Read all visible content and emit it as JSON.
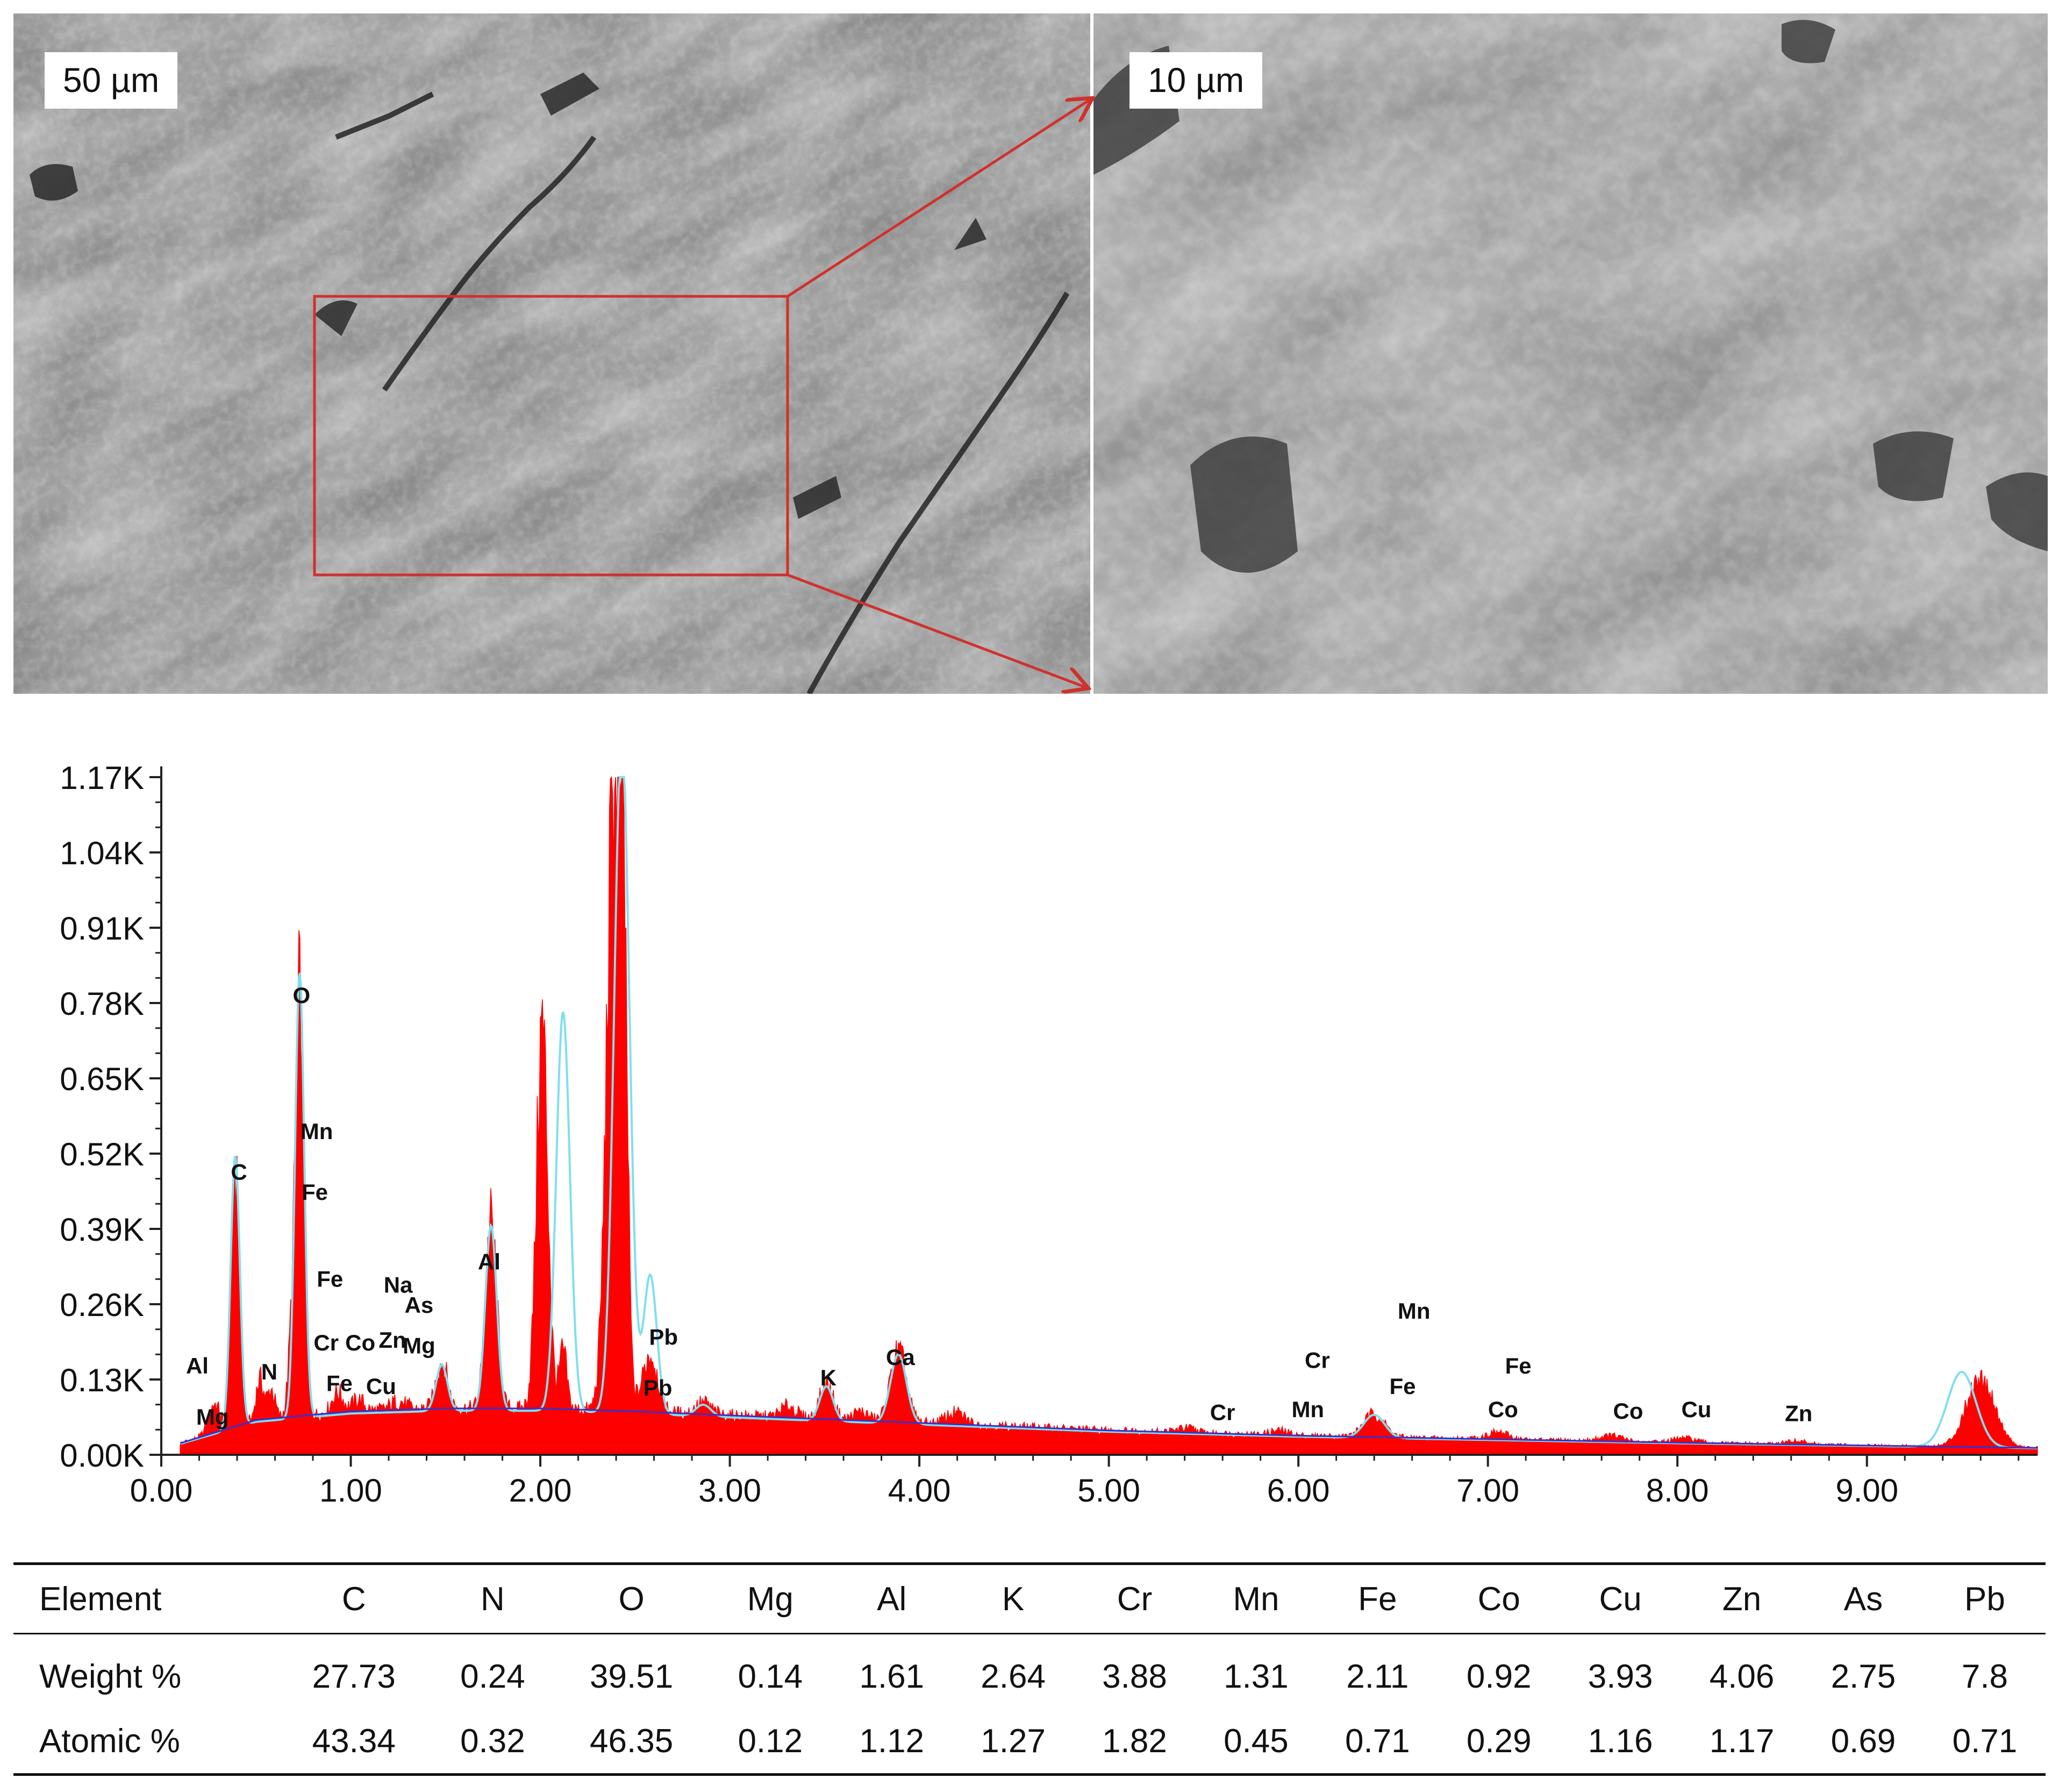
{
  "micrographs": {
    "left_scale": "50 µm",
    "right_scale": "10 µm",
    "zoom_color": "#d0312d"
  },
  "chart_data": {
    "type": "line",
    "xlabel": "",
    "ylabel": "",
    "xlim": [
      0.0,
      9.9
    ],
    "ylim": [
      0.0,
      1.17
    ],
    "x_ticks": [
      "0.00",
      "1.00",
      "2.00",
      "3.00",
      "4.00",
      "5.00",
      "6.00",
      "7.00",
      "8.00",
      "9.00"
    ],
    "y_ticks": [
      "0.00K",
      "0.13K",
      "0.26K",
      "0.39K",
      "0.52K",
      "0.65K",
      "0.78K",
      "0.91K",
      "1.04K",
      "1.17K"
    ],
    "colors": {
      "spectrum": "#ff0000",
      "fit": "#7fdfee",
      "background": "#3333cc"
    },
    "background": [
      [
        0.1,
        0.02
      ],
      [
        0.5,
        0.06
      ],
      [
        1.0,
        0.075
      ],
      [
        1.5,
        0.08
      ],
      [
        2.0,
        0.08
      ],
      [
        2.5,
        0.075
      ],
      [
        3.0,
        0.068
      ],
      [
        4.0,
        0.055
      ],
      [
        5.0,
        0.042
      ],
      [
        6.0,
        0.033
      ],
      [
        7.0,
        0.027
      ],
      [
        8.0,
        0.021
      ],
      [
        9.0,
        0.016
      ],
      [
        9.9,
        0.012
      ]
    ],
    "peaks": [
      {
        "x": 0.28,
        "y": 0.05,
        "w": 0.03
      },
      {
        "x": 0.39,
        "y": 0.44,
        "w": 0.022
      },
      {
        "x": 0.52,
        "y": 0.07,
        "w": 0.02
      },
      {
        "x": 0.58,
        "y": 0.05,
        "w": 0.02
      },
      {
        "x": 0.69,
        "y": 0.12,
        "w": 0.02
      },
      {
        "x": 0.73,
        "y": 0.7,
        "w": 0.022
      },
      {
        "x": 0.93,
        "y": 0.035,
        "w": 0.03
      },
      {
        "x": 1.04,
        "y": 0.02,
        "w": 0.03
      },
      {
        "x": 1.25,
        "y": 0.015,
        "w": 0.04
      },
      {
        "x": 1.48,
        "y": 0.08,
        "w": 0.03
      },
      {
        "x": 1.74,
        "y": 0.32,
        "w": 0.03
      },
      {
        "x": 2.01,
        "y": 0.66,
        "w": 0.03
      },
      {
        "x": 2.12,
        "y": 0.1,
        "w": 0.02
      },
      {
        "x": 2.39,
        "y": 1.1,
        "w": 0.038
      },
      {
        "x": 2.44,
        "y": 0.55,
        "w": 0.02
      },
      {
        "x": 2.58,
        "y": 0.1,
        "w": 0.04
      },
      {
        "x": 2.86,
        "y": 0.02,
        "w": 0.04
      },
      {
        "x": 3.31,
        "y": 0.02,
        "w": 0.04
      },
      {
        "x": 3.51,
        "y": 0.06,
        "w": 0.035
      },
      {
        "x": 3.69,
        "y": 0.015,
        "w": 0.04
      },
      {
        "x": 3.89,
        "y": 0.12,
        "w": 0.042
      },
      {
        "x": 4.19,
        "y": 0.02,
        "w": 0.05
      },
      {
        "x": 5.41,
        "y": 0.008,
        "w": 0.05
      },
      {
        "x": 5.9,
        "y": 0.008,
        "w": 0.05
      },
      {
        "x": 6.4,
        "y": 0.04,
        "w": 0.055
      },
      {
        "x": 7.05,
        "y": 0.012,
        "w": 0.06
      },
      {
        "x": 7.65,
        "y": 0.01,
        "w": 0.06
      },
      {
        "x": 8.04,
        "y": 0.008,
        "w": 0.06
      },
      {
        "x": 8.63,
        "y": 0.006,
        "w": 0.06
      },
      {
        "x": 9.6,
        "y": 0.12,
        "w": 0.075
      }
    ],
    "fit_peaks": [
      {
        "x": 0.39,
        "y": 0.47,
        "w": 0.024
      },
      {
        "x": 0.73,
        "y": 0.77,
        "w": 0.024
      },
      {
        "x": 1.48,
        "y": 0.08,
        "w": 0.03
      },
      {
        "x": 1.74,
        "y": 0.32,
        "w": 0.03
      },
      {
        "x": 2.12,
        "y": 0.69,
        "w": 0.036
      },
      {
        "x": 2.43,
        "y": 1.17,
        "w": 0.04
      },
      {
        "x": 2.58,
        "y": 0.24,
        "w": 0.035
      },
      {
        "x": 2.86,
        "y": 0.02,
        "w": 0.04
      },
      {
        "x": 3.51,
        "y": 0.06,
        "w": 0.035
      },
      {
        "x": 3.89,
        "y": 0.12,
        "w": 0.042
      },
      {
        "x": 6.4,
        "y": 0.04,
        "w": 0.055
      },
      {
        "x": 9.5,
        "y": 0.13,
        "w": 0.075
      }
    ],
    "annotations": [
      {
        "text": "O",
        "x": 0.74,
        "y": 0.78
      },
      {
        "text": "Mn",
        "x": 0.82,
        "y": 0.545
      },
      {
        "text": "Fe",
        "x": 0.81,
        "y": 0.44
      },
      {
        "text": "C",
        "x": 0.41,
        "y": 0.475
      },
      {
        "text": "Fe",
        "x": 0.89,
        "y": 0.29
      },
      {
        "text": "Na",
        "x": 1.25,
        "y": 0.28
      },
      {
        "text": "Al",
        "x": 1.73,
        "y": 0.32
      },
      {
        "text": "As",
        "x": 1.36,
        "y": 0.245
      },
      {
        "text": "Zn",
        "x": 1.22,
        "y": 0.185
      },
      {
        "text": "Co",
        "x": 1.05,
        "y": 0.18
      },
      {
        "text": "Cr",
        "x": 0.87,
        "y": 0.18
      },
      {
        "text": "Mg",
        "x": 1.36,
        "y": 0.175
      },
      {
        "text": "Al",
        "x": 0.19,
        "y": 0.14
      },
      {
        "text": "N",
        "x": 0.57,
        "y": 0.13
      },
      {
        "text": "Fe",
        "x": 0.94,
        "y": 0.11
      },
      {
        "text": "Cu",
        "x": 1.16,
        "y": 0.105
      },
      {
        "text": "Mg",
        "x": 0.27,
        "y": 0.052
      },
      {
        "text": "Pb",
        "x": 2.65,
        "y": 0.19
      },
      {
        "text": "Pb",
        "x": 2.62,
        "y": 0.102
      },
      {
        "text": "K",
        "x": 3.52,
        "y": 0.12
      },
      {
        "text": "Ca",
        "x": 3.9,
        "y": 0.155
      },
      {
        "text": "Mn",
        "x": 6.61,
        "y": 0.235
      },
      {
        "text": "Cr",
        "x": 6.1,
        "y": 0.15
      },
      {
        "text": "Fe",
        "x": 7.16,
        "y": 0.14
      },
      {
        "text": "Fe",
        "x": 6.55,
        "y": 0.105
      },
      {
        "text": "Cr",
        "x": 5.6,
        "y": 0.06
      },
      {
        "text": "Mn",
        "x": 6.05,
        "y": 0.065
      },
      {
        "text": "Co",
        "x": 7.08,
        "y": 0.065
      },
      {
        "text": "Co",
        "x": 7.74,
        "y": 0.062
      },
      {
        "text": "Cu",
        "x": 8.1,
        "y": 0.065
      },
      {
        "text": "Zn",
        "x": 8.64,
        "y": 0.058
      }
    ]
  },
  "table": {
    "header": [
      "Element",
      "C",
      "N",
      "O",
      "Mg",
      "Al",
      "K",
      "Cr",
      "Mn",
      "Fe",
      "Co",
      "Cu",
      "Zn",
      "As",
      "Pb"
    ],
    "rows": [
      [
        "Weight %",
        "27.73",
        "0.24",
        "39.51",
        "0.14",
        "1.61",
        "2.64",
        "3.88",
        "1.31",
        "2.11",
        "0.92",
        "3.93",
        "4.06",
        "2.75",
        "7.8"
      ],
      [
        "Atomic %",
        "43.34",
        "0.32",
        "46.35",
        "0.12",
        "1.12",
        "1.27",
        "1.82",
        "0.45",
        "0.71",
        "0.29",
        "1.16",
        "1.17",
        "0.69",
        "0.71"
      ]
    ]
  }
}
